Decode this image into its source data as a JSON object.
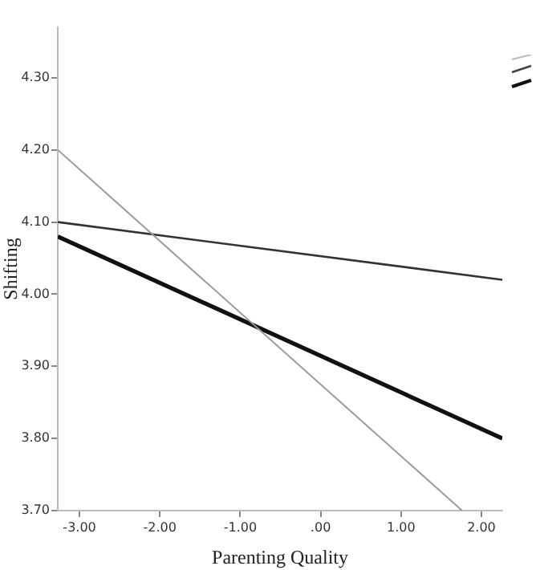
{
  "chart_data": {
    "type": "line",
    "xlabel": "Parenting Quality",
    "ylabel": "Shifting",
    "xlim": [
      -3.27,
      2.26
    ],
    "ylim": [
      3.7,
      4.37
    ],
    "xticks": [
      {
        "value": -3,
        "label": "-3.00"
      },
      {
        "value": -2,
        "label": "-2.00"
      },
      {
        "value": -1,
        "label": "-1.00"
      },
      {
        "value": 0,
        "label": ".00"
      },
      {
        "value": 1,
        "label": "1.00"
      },
      {
        "value": 2,
        "label": "2.00"
      }
    ],
    "yticks": [
      {
        "value": 3.7,
        "label": "3.70"
      },
      {
        "value": 3.8,
        "label": "3.80"
      },
      {
        "value": 3.9,
        "label": "3.90"
      },
      {
        "value": 4.0,
        "label": "4.00"
      },
      {
        "value": 4.1,
        "label": "4.10"
      },
      {
        "value": 4.2,
        "label": "4.20"
      },
      {
        "value": 4.3,
        "label": "4.30"
      }
    ],
    "grid": false,
    "legend": false,
    "marker": "none",
    "line_style": "solid",
    "series": [
      {
        "color": "#9a9a9a",
        "x": [
          -3.27,
          1.76
        ],
        "values": [
          4.2,
          3.7
        ]
      },
      {
        "color": "#333333",
        "x": [
          -3.27,
          2.26
        ],
        "values": [
          4.1,
          4.02
        ]
      },
      {
        "color": "#111111",
        "x": [
          -3.27,
          2.26
        ],
        "values": [
          4.08,
          3.8
        ]
      }
    ]
  }
}
